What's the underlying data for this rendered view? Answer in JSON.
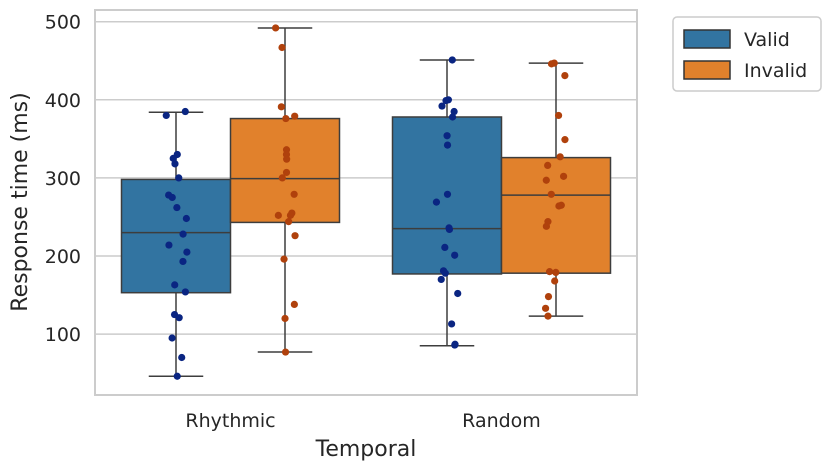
{
  "chart_data": {
    "type": "box",
    "xlabel": "Temporal",
    "ylabel": "Response time (ms)",
    "categories": [
      "Rhythmic",
      "Random"
    ],
    "yticks": [
      100,
      200,
      300,
      400,
      500
    ],
    "ylim": [
      22,
      515
    ],
    "grid": "horizontal",
    "legend_position": "outside-top-right",
    "series": [
      {
        "name": "Valid",
        "box_color": "#3274a1",
        "point_color": "#0a2582",
        "boxes": [
          {
            "category": "Rhythmic",
            "whisker_low": 46,
            "q1": 153,
            "median": 230,
            "q3": 298,
            "whisker_high": 384
          },
          {
            "category": "Random",
            "whisker_low": 85,
            "q1": 177,
            "median": 235,
            "q3": 378,
            "whisker_high": 451
          }
        ],
        "points": [
          {
            "category": "Rhythmic",
            "values": [
              385,
              380,
              330,
              325,
              318,
              300,
              278,
              275,
              262,
              248,
              228,
              214,
              205,
              193,
              163,
              154,
              125,
              121,
              95,
              70,
              46
            ]
          },
          {
            "category": "Random",
            "values": [
              451,
              400,
              399,
              392,
              385,
              378,
              354,
              342,
              279,
              269,
              236,
              234,
              211,
              201,
              181,
              178,
              170,
              152,
              113,
              87,
              86
            ]
          }
        ]
      },
      {
        "name": "Invalid",
        "box_color": "#e1812c",
        "point_color": "#b0410c",
        "boxes": [
          {
            "category": "Rhythmic",
            "whisker_low": 77,
            "q1": 243,
            "median": 299,
            "q3": 376,
            "whisker_high": 492
          },
          {
            "category": "Random",
            "whisker_low": 123,
            "q1": 178,
            "median": 278,
            "q3": 326,
            "whisker_high": 447
          }
        ],
        "points": [
          {
            "category": "Rhythmic",
            "values": [
              492,
              467,
              391,
              379,
              376,
              336,
              330,
              324,
              307,
              300,
              279,
              255,
              252,
              252,
              244,
              226,
              196,
              138,
              120,
              77
            ]
          },
          {
            "category": "Random",
            "values": [
              447,
              446,
              431,
              380,
              349,
              327,
              316,
              302,
              297,
              279,
              265,
              264,
              244,
              238,
              180,
              179,
              168,
              148,
              133,
              123
            ]
          }
        ]
      }
    ]
  }
}
